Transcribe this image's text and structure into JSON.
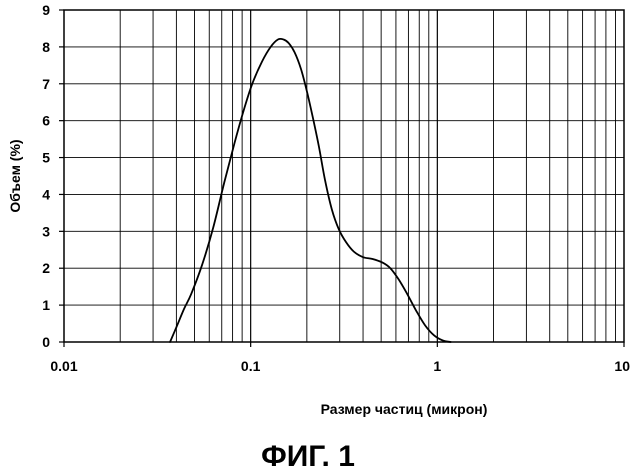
{
  "chart_data": {
    "type": "line",
    "xscale": "log",
    "xlim": [
      0.01,
      10
    ],
    "ylim": [
      0,
      9
    ],
    "x_ticks": [
      0.01,
      0.1,
      1,
      10
    ],
    "x_tick_labels": [
      "0.01",
      "0.1",
      "1",
      "10"
    ],
    "y_ticks": [
      0,
      1,
      2,
      3,
      4,
      5,
      6,
      7,
      8,
      9
    ],
    "y_tick_labels": [
      "0",
      "1",
      "2",
      "3",
      "4",
      "5",
      "6",
      "7",
      "8",
      "9"
    ],
    "xlabel": "Размер частиц (микрон)",
    "ylabel": "Объем (%)",
    "grid": true,
    "series": [
      {
        "x": [
          0.037,
          0.04,
          0.044,
          0.048,
          0.055,
          0.063,
          0.072,
          0.082,
          0.092,
          0.102,
          0.115,
          0.128,
          0.14,
          0.15,
          0.16,
          0.172,
          0.186,
          0.2,
          0.215,
          0.232,
          0.25,
          0.272,
          0.297,
          0.325,
          0.357,
          0.4,
          0.45,
          0.51,
          0.56,
          0.62,
          0.69,
          0.77,
          0.86,
          0.96,
          1.07,
          1.18
        ],
        "y": [
          0.0,
          0.4,
          0.9,
          1.3,
          2.1,
          3.1,
          4.3,
          5.4,
          6.3,
          7.0,
          7.6,
          8.0,
          8.2,
          8.2,
          8.1,
          7.85,
          7.4,
          6.8,
          6.1,
          5.3,
          4.4,
          3.6,
          3.05,
          2.7,
          2.45,
          2.3,
          2.25,
          2.15,
          2.0,
          1.7,
          1.3,
          0.85,
          0.45,
          0.18,
          0.04,
          0.0
        ]
      }
    ]
  },
  "figure_caption": "ФИГ. 1"
}
